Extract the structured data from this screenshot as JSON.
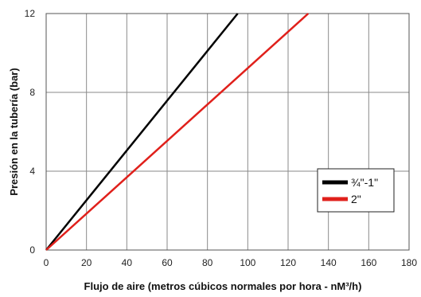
{
  "chart_data": {
    "type": "line",
    "title": "",
    "xlabel": "Flujo de aire (metros cúbicos normales por hora -  nM³/h)",
    "ylabel": "Presión en la tubería (bar)",
    "xlim": [
      0,
      180
    ],
    "ylim": [
      0,
      12
    ],
    "xticks": [
      0,
      20,
      40,
      60,
      80,
      100,
      120,
      140,
      160,
      180
    ],
    "yticks": [
      0,
      4,
      8,
      12
    ],
    "grid": true,
    "legend_position": "lower-right",
    "series": [
      {
        "name": "¾\"-1\"",
        "color": "#000000",
        "x": [
          0,
          95
        ],
        "y": [
          0,
          12
        ]
      },
      {
        "name": "2\"",
        "color": "#e0201b",
        "x": [
          0,
          130
        ],
        "y": [
          0,
          12
        ]
      }
    ]
  }
}
